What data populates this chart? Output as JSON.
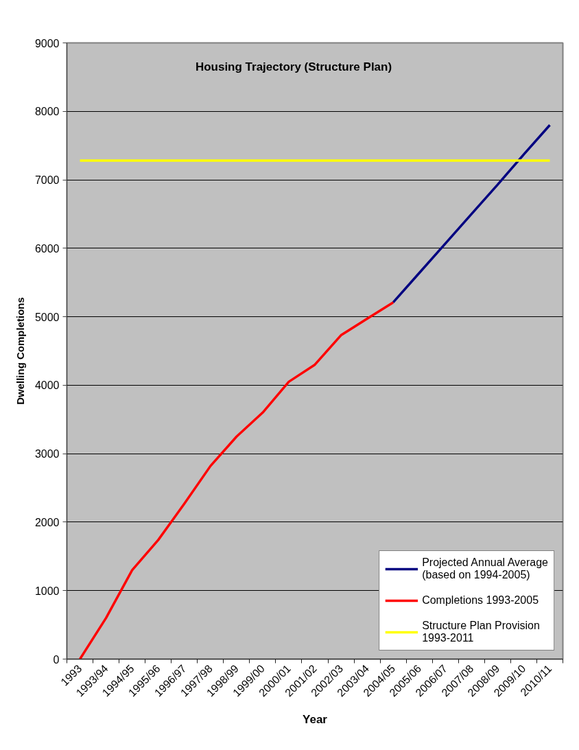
{
  "chart_data": {
    "type": "line",
    "title": "Housing Trajectory (Structure Plan)",
    "xlabel": "Year",
    "ylabel": "Dwelling Completions",
    "categories": [
      "1993",
      "1993/94",
      "1994/95",
      "1995/96",
      "1996/97",
      "1997/98",
      "1998/99",
      "1999/00",
      "2000/01",
      "2001/02",
      "2002/03",
      "2003/04",
      "2004/05",
      "2005/06",
      "2006/07",
      "2007/08",
      "2008/09",
      "2009/10",
      "2010/11"
    ],
    "ylim": [
      0,
      9000
    ],
    "yticks": [
      0,
      1000,
      2000,
      3000,
      4000,
      5000,
      6000,
      7000,
      8000,
      9000
    ],
    "grid": "y",
    "legend": "bottom right",
    "series": [
      {
        "name": "Projected Annual Average (based on 1994-2005)",
        "color": "#000080",
        "values": [
          null,
          null,
          null,
          null,
          null,
          null,
          null,
          null,
          null,
          null,
          null,
          null,
          5210,
          5640,
          6070,
          6500,
          6930,
          7370,
          7800
        ]
      },
      {
        "name": "Completions 1993-2005",
        "color": "#ff0000",
        "values": [
          0,
          600,
          1300,
          1740,
          2270,
          2820,
          3250,
          3600,
          4050,
          4300,
          4730,
          4970,
          5210,
          null,
          null,
          null,
          null,
          null,
          null
        ]
      },
      {
        "name": "Structure Plan Provision 1993-2011",
        "color": "#ffff00",
        "values": [
          7280,
          7280,
          7280,
          7280,
          7280,
          7280,
          7280,
          7280,
          7280,
          7280,
          7280,
          7280,
          7280,
          7280,
          7280,
          7280,
          7280,
          7280,
          7280
        ]
      }
    ]
  }
}
